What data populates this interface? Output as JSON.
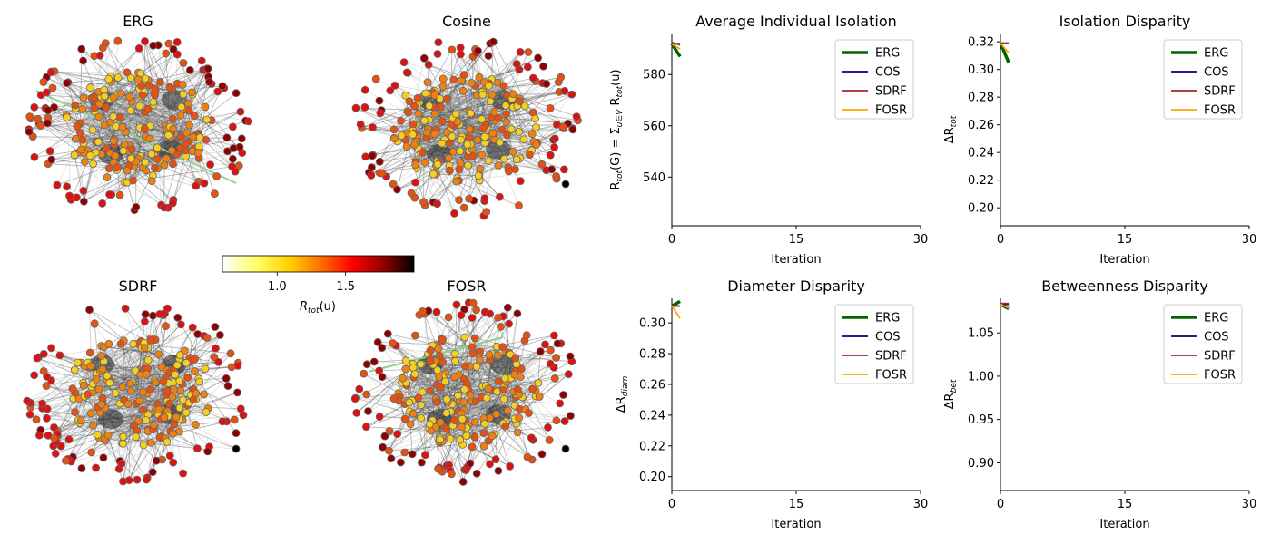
{
  "networks": [
    {
      "title": "ERG"
    },
    {
      "title": "Cosine"
    },
    {
      "title": "SDRF"
    },
    {
      "title": "FOSR"
    }
  ],
  "colorbar": {
    "label": "R_tot(u)",
    "ticks": [
      1.0,
      1.5
    ],
    "range": [
      0.6,
      2.0
    ],
    "colormap": "hot_r"
  },
  "legend_entries": [
    "ERG",
    "COS",
    "SDRF",
    "FOSR"
  ],
  "series_colors": {
    "ERG": "#006400",
    "COS": "#000080",
    "SDRF": "#a52a2a",
    "FOSR": "#ffa500"
  },
  "chart_data": [
    {
      "type": "line",
      "title": "Average Individual Isolation",
      "xlabel": "Iteration",
      "ylabel": "R_tot(G) = Σ_{u∈V} R_tot(u)",
      "xlim": [
        0,
        30
      ],
      "ylim": [
        521,
        596
      ],
      "xticks": [
        0,
        15,
        30
      ],
      "yticks": [
        540,
        560,
        580
      ],
      "yticklabels": [
        "540",
        "560",
        "580"
      ],
      "legend": "top-right",
      "series": [
        {
          "name": "ERG",
          "x": [
            0,
            1
          ],
          "y": [
            592,
            587
          ]
        },
        {
          "name": "COS",
          "x": [
            0,
            1
          ],
          "y": [
            592,
            592
          ]
        },
        {
          "name": "SDRF",
          "x": [
            0,
            1
          ],
          "y": [
            592.5,
            591.5
          ]
        },
        {
          "name": "FOSR",
          "x": [
            0,
            1
          ],
          "y": [
            592,
            590
          ]
        }
      ]
    },
    {
      "type": "line",
      "title": "Isolation Disparity",
      "xlabel": "Iteration",
      "ylabel": "ΔR_tot",
      "xlim": [
        0,
        30
      ],
      "ylim": [
        0.187,
        0.326
      ],
      "xticks": [
        0,
        15,
        30
      ],
      "yticks": [
        0.2,
        0.22,
        0.24,
        0.26,
        0.28,
        0.3,
        0.32
      ],
      "yticklabels": [
        "0.20",
        "0.22",
        "0.24",
        "0.26",
        "0.28",
        "0.30",
        "0.32"
      ],
      "legend": "top-right",
      "series": [
        {
          "name": "ERG",
          "x": [
            0,
            1
          ],
          "y": [
            0.319,
            0.305
          ]
        },
        {
          "name": "COS",
          "x": [
            0,
            1
          ],
          "y": [
            0.319,
            0.319
          ]
        },
        {
          "name": "SDRF",
          "x": [
            0,
            1
          ],
          "y": [
            0.319,
            0.319
          ]
        },
        {
          "name": "FOSR",
          "x": [
            0,
            1
          ],
          "y": [
            0.319,
            0.312
          ]
        }
      ]
    },
    {
      "type": "line",
      "title": "Diameter Disparity",
      "xlabel": "Iteration",
      "ylabel": "ΔR_diam",
      "xlim": [
        0,
        30
      ],
      "ylim": [
        0.191,
        0.316
      ],
      "xticks": [
        0,
        15,
        30
      ],
      "yticks": [
        0.2,
        0.22,
        0.24,
        0.26,
        0.28,
        0.3
      ],
      "yticklabels": [
        "0.20",
        "0.22",
        "0.24",
        "0.26",
        "0.28",
        "0.30"
      ],
      "legend": "top-right",
      "series": [
        {
          "name": "ERG",
          "x": [
            0,
            1
          ],
          "y": [
            0.311,
            0.314
          ]
        },
        {
          "name": "COS",
          "x": [
            0,
            1
          ],
          "y": [
            0.311,
            0.311
          ]
        },
        {
          "name": "SDRF",
          "x": [
            0,
            1
          ],
          "y": [
            0.311,
            0.311
          ]
        },
        {
          "name": "FOSR",
          "x": [
            0,
            1
          ],
          "y": [
            0.311,
            0.303
          ]
        }
      ]
    },
    {
      "type": "line",
      "title": "Betweenness Disparity",
      "xlabel": "Iteration",
      "ylabel": "ΔR_bet",
      "xlim": [
        0,
        30
      ],
      "ylim": [
        0.868,
        1.09
      ],
      "xticks": [
        0,
        15,
        30
      ],
      "yticks": [
        0.9,
        0.95,
        1.0,
        1.05
      ],
      "yticklabels": [
        "0.90",
        "0.95",
        "1.00",
        "1.05"
      ],
      "legend": "top-right",
      "series": [
        {
          "name": "ERG",
          "x": [
            0,
            1
          ],
          "y": [
            1.083,
            1.078
          ]
        },
        {
          "name": "COS",
          "x": [
            0,
            1
          ],
          "y": [
            1.083,
            1.083
          ]
        },
        {
          "name": "SDRF",
          "x": [
            0,
            1
          ],
          "y": [
            1.084,
            1.084
          ]
        },
        {
          "name": "FOSR",
          "x": [
            0,
            1
          ],
          "y": [
            1.083,
            1.079
          ]
        }
      ]
    }
  ]
}
